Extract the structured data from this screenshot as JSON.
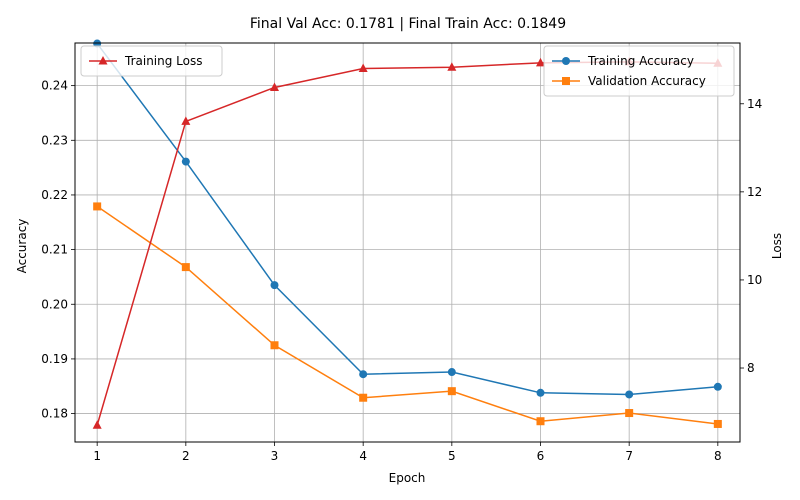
{
  "chart_data": {
    "type": "line",
    "title": "Final Val Acc: 0.1781 | Final Train Acc: 0.1849",
    "xlabel": "Epoch",
    "ylabel": "Accuracy",
    "y2label": "Loss",
    "x": [
      1,
      2,
      3,
      4,
      5,
      6,
      7,
      8
    ],
    "xlim": [
      0.75,
      8.25
    ],
    "ylim": [
      0.1748,
      0.2478
    ],
    "y2lim": [
      6.32,
      15.38
    ],
    "xticks": [
      "1",
      "2",
      "3",
      "4",
      "5",
      "6",
      "7",
      "8"
    ],
    "yticks": [
      "0.18",
      "0.19",
      "0.20",
      "0.21",
      "0.22",
      "0.23",
      "0.24"
    ],
    "y2ticks": [
      "8",
      "10",
      "12",
      "14"
    ],
    "grid": true,
    "series": [
      {
        "name": "Training Accuracy",
        "axis": "left",
        "marker": "circle",
        "color": "#1f77b4",
        "values": [
          0.2477,
          0.2261,
          0.2035,
          0.1872,
          0.1876,
          0.1838,
          0.1835,
          0.1849
        ]
      },
      {
        "name": "Validation Accuracy",
        "axis": "left",
        "marker": "square",
        "color": "#ff7f0e",
        "values": [
          0.2179,
          0.2068,
          0.1925,
          0.1829,
          0.1841,
          0.1786,
          0.1801,
          0.1781
        ]
      },
      {
        "name": "Training Loss",
        "axis": "right",
        "marker": "triangle",
        "color": "#d62728",
        "values": [
          6.7,
          13.6,
          14.37,
          14.8,
          14.83,
          14.93,
          14.95,
          14.92
        ]
      }
    ],
    "legend_right": {
      "placement": "upper-right",
      "items": [
        "Training Accuracy",
        "Validation Accuracy"
      ]
    },
    "legend_left": {
      "placement": "upper-left",
      "items": [
        "Training Loss"
      ]
    }
  }
}
